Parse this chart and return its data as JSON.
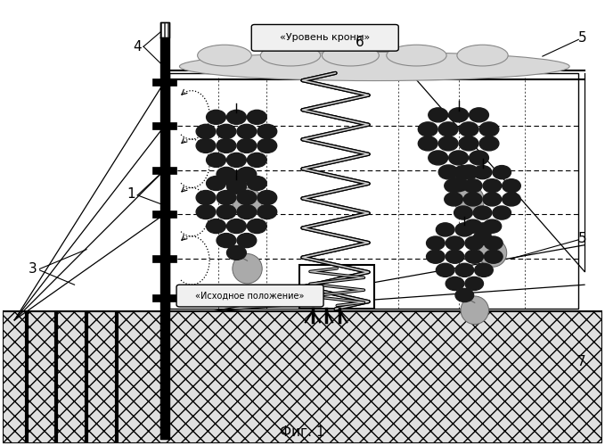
{
  "bg_color": "#ffffff",
  "fig_width": 6.79,
  "fig_height": 5.0,
  "title": "Фиг. 1",
  "label_crown": "«Уровень кроны»",
  "label_initial": "«Исходное положение»"
}
